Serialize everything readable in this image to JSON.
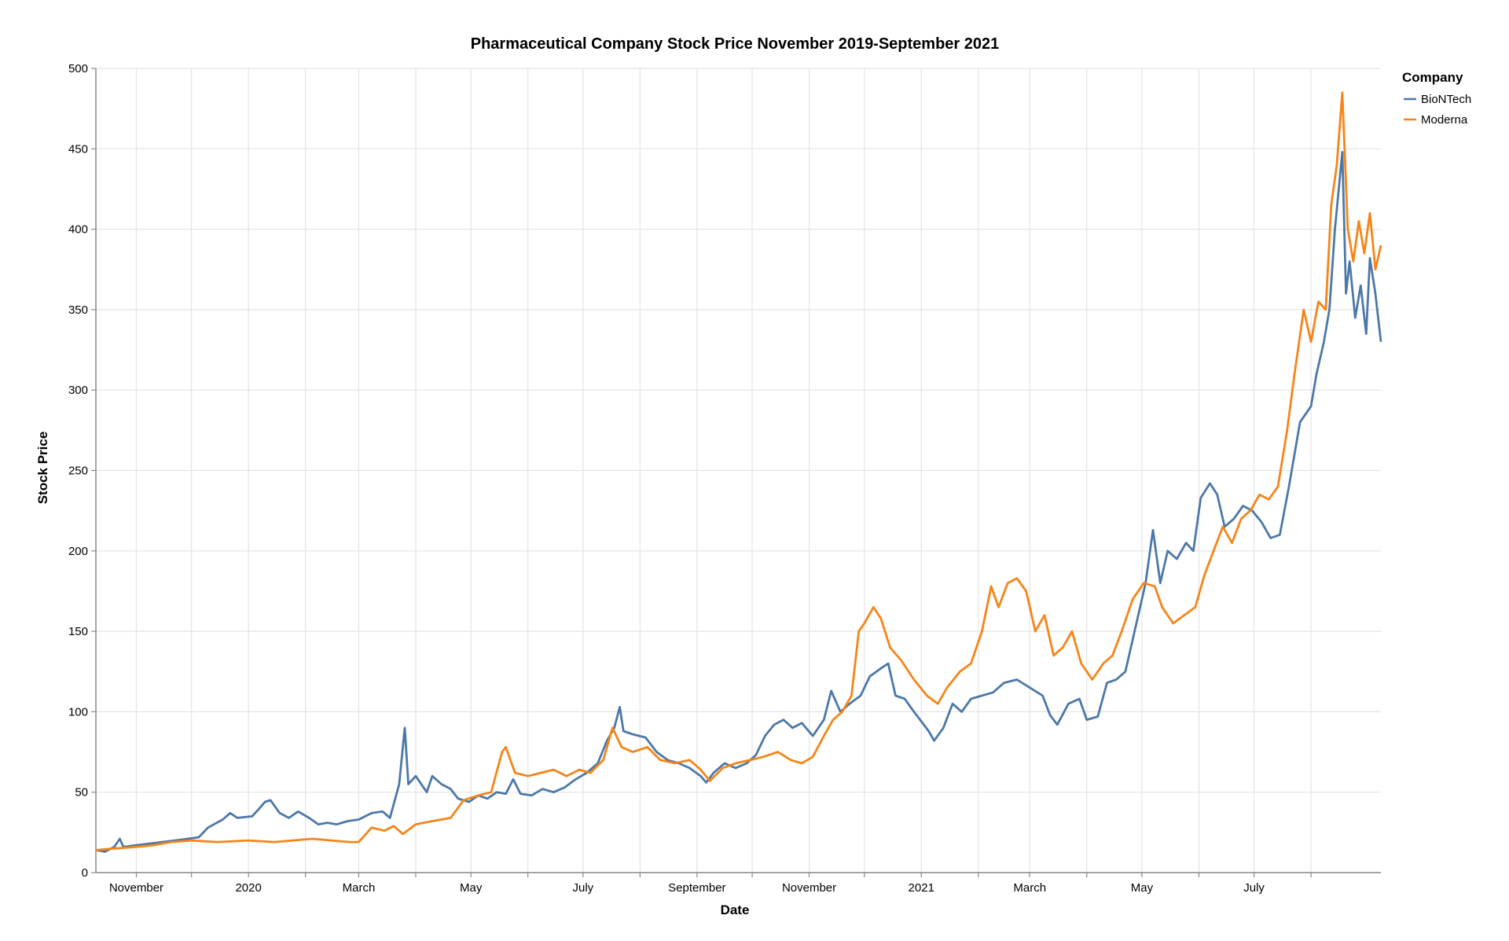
{
  "chart_data": {
    "type": "line",
    "title": "Pharmaceutical Company Stock Price November 2019-September 2021",
    "xlabel": "Date",
    "ylabel": "Stock Price",
    "legend_title": "Company",
    "legend_position": "top-right",
    "grid": true,
    "xlim": [
      "2019-10-10",
      "2021-09-08"
    ],
    "ylim": [
      0,
      500
    ],
    "y_ticks": [
      0,
      50,
      100,
      150,
      200,
      250,
      300,
      350,
      400,
      450,
      500
    ],
    "x_ticks": [
      {
        "date": "2019-11-01",
        "label": "November"
      },
      {
        "date": "2019-12-01",
        "label": ""
      },
      {
        "date": "2020-01-01",
        "label": "2020"
      },
      {
        "date": "2020-02-01",
        "label": ""
      },
      {
        "date": "2020-03-01",
        "label": "March"
      },
      {
        "date": "2020-04-01",
        "label": ""
      },
      {
        "date": "2020-05-01",
        "label": "May"
      },
      {
        "date": "2020-06-01",
        "label": ""
      },
      {
        "date": "2020-07-01",
        "label": "July"
      },
      {
        "date": "2020-08-01",
        "label": ""
      },
      {
        "date": "2020-09-01",
        "label": "September"
      },
      {
        "date": "2020-10-01",
        "label": ""
      },
      {
        "date": "2020-11-01",
        "label": "November"
      },
      {
        "date": "2020-12-01",
        "label": ""
      },
      {
        "date": "2021-01-01",
        "label": "2021"
      },
      {
        "date": "2021-02-01",
        "label": ""
      },
      {
        "date": "2021-03-01",
        "label": "March"
      },
      {
        "date": "2021-04-01",
        "label": ""
      },
      {
        "date": "2021-05-01",
        "label": "May"
      },
      {
        "date": "2021-06-01",
        "label": ""
      },
      {
        "date": "2021-07-01",
        "label": "July"
      },
      {
        "date": "2021-08-01",
        "label": ""
      }
    ],
    "series": [
      {
        "name": "BioNTech",
        "color": "#4c78a8",
        "points": [
          [
            "2019-10-10",
            14
          ],
          [
            "2019-10-15",
            13
          ],
          [
            "2019-10-20",
            16
          ],
          [
            "2019-10-23",
            21
          ],
          [
            "2019-10-25",
            16
          ],
          [
            "2019-11-01",
            17
          ],
          [
            "2019-11-08",
            18
          ],
          [
            "2019-11-15",
            19
          ],
          [
            "2019-11-22",
            20
          ],
          [
            "2019-11-29",
            21
          ],
          [
            "2019-12-05",
            22
          ],
          [
            "2019-12-10",
            28
          ],
          [
            "2019-12-18",
            33
          ],
          [
            "2019-12-22",
            37
          ],
          [
            "2019-12-26",
            34
          ],
          [
            "2020-01-03",
            35
          ],
          [
            "2020-01-07",
            40
          ],
          [
            "2020-01-10",
            44
          ],
          [
            "2020-01-13",
            45
          ],
          [
            "2020-01-18",
            37
          ],
          [
            "2020-01-23",
            34
          ],
          [
            "2020-01-28",
            38
          ],
          [
            "2020-02-03",
            34
          ],
          [
            "2020-02-08",
            30
          ],
          [
            "2020-02-13",
            31
          ],
          [
            "2020-02-18",
            30
          ],
          [
            "2020-02-24",
            32
          ],
          [
            "2020-03-01",
            33
          ],
          [
            "2020-03-08",
            37
          ],
          [
            "2020-03-14",
            38
          ],
          [
            "2020-03-18",
            34
          ],
          [
            "2020-03-23",
            55
          ],
          [
            "2020-03-26",
            90
          ],
          [
            "2020-03-28",
            55
          ],
          [
            "2020-04-01",
            60
          ],
          [
            "2020-04-07",
            50
          ],
          [
            "2020-04-10",
            60
          ],
          [
            "2020-04-15",
            55
          ],
          [
            "2020-04-20",
            52
          ],
          [
            "2020-04-24",
            46
          ],
          [
            "2020-04-30",
            44
          ],
          [
            "2020-05-05",
            48
          ],
          [
            "2020-05-10",
            46
          ],
          [
            "2020-05-15",
            50
          ],
          [
            "2020-05-20",
            49
          ],
          [
            "2020-05-24",
            58
          ],
          [
            "2020-05-28",
            49
          ],
          [
            "2020-06-03",
            48
          ],
          [
            "2020-06-09",
            52
          ],
          [
            "2020-06-15",
            50
          ],
          [
            "2020-06-21",
            53
          ],
          [
            "2020-06-27",
            58
          ],
          [
            "2020-07-03",
            62
          ],
          [
            "2020-07-09",
            68
          ],
          [
            "2020-07-14",
            82
          ],
          [
            "2020-07-18",
            90
          ],
          [
            "2020-07-21",
            103
          ],
          [
            "2020-07-23",
            88
          ],
          [
            "2020-07-28",
            86
          ],
          [
            "2020-08-04",
            84
          ],
          [
            "2020-08-10",
            75
          ],
          [
            "2020-08-16",
            70
          ],
          [
            "2020-08-22",
            68
          ],
          [
            "2020-08-28",
            65
          ],
          [
            "2020-09-03",
            60
          ],
          [
            "2020-09-06",
            56
          ],
          [
            "2020-09-10",
            62
          ],
          [
            "2020-09-16",
            68
          ],
          [
            "2020-09-22",
            65
          ],
          [
            "2020-09-28",
            68
          ],
          [
            "2020-10-03",
            73
          ],
          [
            "2020-10-08",
            85
          ],
          [
            "2020-10-13",
            92
          ],
          [
            "2020-10-18",
            95
          ],
          [
            "2020-10-23",
            90
          ],
          [
            "2020-10-28",
            93
          ],
          [
            "2020-11-03",
            85
          ],
          [
            "2020-11-09",
            95
          ],
          [
            "2020-11-13",
            113
          ],
          [
            "2020-11-18",
            100
          ],
          [
            "2020-11-23",
            105
          ],
          [
            "2020-11-29",
            110
          ],
          [
            "2020-12-04",
            122
          ],
          [
            "2020-12-10",
            127
          ],
          [
            "2020-12-14",
            130
          ],
          [
            "2020-12-18",
            110
          ],
          [
            "2020-12-23",
            108
          ],
          [
            "2020-12-28",
            100
          ],
          [
            "2021-01-05",
            88
          ],
          [
            "2021-01-08",
            82
          ],
          [
            "2021-01-13",
            90
          ],
          [
            "2021-01-18",
            105
          ],
          [
            "2021-01-23",
            100
          ],
          [
            "2021-01-28",
            108
          ],
          [
            "2021-02-03",
            110
          ],
          [
            "2021-02-09",
            112
          ],
          [
            "2021-02-15",
            118
          ],
          [
            "2021-02-22",
            120
          ],
          [
            "2021-03-01",
            115
          ],
          [
            "2021-03-08",
            110
          ],
          [
            "2021-03-12",
            98
          ],
          [
            "2021-03-16",
            92
          ],
          [
            "2021-03-22",
            105
          ],
          [
            "2021-03-28",
            108
          ],
          [
            "2021-04-01",
            95
          ],
          [
            "2021-04-07",
            97
          ],
          [
            "2021-04-12",
            118
          ],
          [
            "2021-04-17",
            120
          ],
          [
            "2021-04-22",
            125
          ],
          [
            "2021-04-27",
            150
          ],
          [
            "2021-05-03",
            180
          ],
          [
            "2021-05-07",
            213
          ],
          [
            "2021-05-11",
            180
          ],
          [
            "2021-05-15",
            200
          ],
          [
            "2021-05-20",
            195
          ],
          [
            "2021-05-25",
            205
          ],
          [
            "2021-05-29",
            200
          ],
          [
            "2021-06-02",
            233
          ],
          [
            "2021-06-07",
            242
          ],
          [
            "2021-06-11",
            235
          ],
          [
            "2021-06-15",
            215
          ],
          [
            "2021-06-20",
            220
          ],
          [
            "2021-06-25",
            228
          ],
          [
            "2021-06-30",
            225
          ],
          [
            "2021-07-05",
            218
          ],
          [
            "2021-07-10",
            208
          ],
          [
            "2021-07-15",
            210
          ],
          [
            "2021-07-20",
            240
          ],
          [
            "2021-07-26",
            280
          ],
          [
            "2021-08-01",
            290
          ],
          [
            "2021-08-04",
            310
          ],
          [
            "2021-08-08",
            330
          ],
          [
            "2021-08-11",
            350
          ],
          [
            "2021-08-14",
            400
          ],
          [
            "2021-08-18",
            448
          ],
          [
            "2021-08-20",
            360
          ],
          [
            "2021-08-22",
            380
          ],
          [
            "2021-08-25",
            345
          ],
          [
            "2021-08-28",
            365
          ],
          [
            "2021-08-31",
            335
          ],
          [
            "2021-09-02",
            382
          ],
          [
            "2021-09-05",
            360
          ],
          [
            "2021-09-08",
            330
          ]
        ]
      },
      {
        "name": "Moderna",
        "color": "#f58518",
        "points": [
          [
            "2019-10-10",
            14
          ],
          [
            "2019-10-20",
            15
          ],
          [
            "2019-11-01",
            16
          ],
          [
            "2019-11-10",
            17
          ],
          [
            "2019-11-20",
            19
          ],
          [
            "2019-12-01",
            20
          ],
          [
            "2019-12-15",
            19
          ],
          [
            "2020-01-01",
            20
          ],
          [
            "2020-01-15",
            19
          ],
          [
            "2020-01-25",
            20
          ],
          [
            "2020-02-05",
            21
          ],
          [
            "2020-02-15",
            20
          ],
          [
            "2020-02-25",
            19
          ],
          [
            "2020-03-01",
            19
          ],
          [
            "2020-03-08",
            28
          ],
          [
            "2020-03-15",
            26
          ],
          [
            "2020-03-20",
            29
          ],
          [
            "2020-03-25",
            24
          ],
          [
            "2020-04-01",
            30
          ],
          [
            "2020-04-10",
            32
          ],
          [
            "2020-04-20",
            34
          ],
          [
            "2020-04-27",
            45
          ],
          [
            "2020-05-05",
            48
          ],
          [
            "2020-05-12",
            50
          ],
          [
            "2020-05-18",
            75
          ],
          [
            "2020-05-20",
            78
          ],
          [
            "2020-05-25",
            62
          ],
          [
            "2020-06-01",
            60
          ],
          [
            "2020-06-08",
            62
          ],
          [
            "2020-06-15",
            64
          ],
          [
            "2020-06-22",
            60
          ],
          [
            "2020-06-29",
            64
          ],
          [
            "2020-07-05",
            62
          ],
          [
            "2020-07-12",
            70
          ],
          [
            "2020-07-17",
            90
          ],
          [
            "2020-07-22",
            78
          ],
          [
            "2020-07-28",
            75
          ],
          [
            "2020-08-05",
            78
          ],
          [
            "2020-08-12",
            70
          ],
          [
            "2020-08-20",
            68
          ],
          [
            "2020-08-28",
            70
          ],
          [
            "2020-09-03",
            64
          ],
          [
            "2020-09-08",
            57
          ],
          [
            "2020-09-15",
            65
          ],
          [
            "2020-09-22",
            68
          ],
          [
            "2020-09-30",
            70
          ],
          [
            "2020-10-07",
            72
          ],
          [
            "2020-10-15",
            75
          ],
          [
            "2020-10-22",
            70
          ],
          [
            "2020-10-28",
            68
          ],
          [
            "2020-11-03",
            72
          ],
          [
            "2020-11-09",
            85
          ],
          [
            "2020-11-14",
            95
          ],
          [
            "2020-11-19",
            100
          ],
          [
            "2020-11-24",
            110
          ],
          [
            "2020-11-28",
            150
          ],
          [
            "2020-12-01",
            155
          ],
          [
            "2020-12-06",
            165
          ],
          [
            "2020-12-10",
            158
          ],
          [
            "2020-12-15",
            140
          ],
          [
            "2020-12-21",
            132
          ],
          [
            "2020-12-28",
            120
          ],
          [
            "2021-01-04",
            110
          ],
          [
            "2021-01-10",
            105
          ],
          [
            "2021-01-15",
            115
          ],
          [
            "2021-01-22",
            125
          ],
          [
            "2021-01-28",
            130
          ],
          [
            "2021-02-03",
            150
          ],
          [
            "2021-02-08",
            178
          ],
          [
            "2021-02-12",
            165
          ],
          [
            "2021-02-17",
            180
          ],
          [
            "2021-02-22",
            183
          ],
          [
            "2021-02-27",
            175
          ],
          [
            "2021-03-04",
            150
          ],
          [
            "2021-03-09",
            160
          ],
          [
            "2021-03-14",
            135
          ],
          [
            "2021-03-19",
            140
          ],
          [
            "2021-03-24",
            150
          ],
          [
            "2021-03-29",
            130
          ],
          [
            "2021-04-04",
            120
          ],
          [
            "2021-04-10",
            130
          ],
          [
            "2021-04-15",
            135
          ],
          [
            "2021-04-20",
            150
          ],
          [
            "2021-04-26",
            170
          ],
          [
            "2021-05-02",
            180
          ],
          [
            "2021-05-08",
            178
          ],
          [
            "2021-05-12",
            165
          ],
          [
            "2021-05-18",
            155
          ],
          [
            "2021-05-24",
            160
          ],
          [
            "2021-05-30",
            165
          ],
          [
            "2021-06-04",
            185
          ],
          [
            "2021-06-09",
            200
          ],
          [
            "2021-06-14",
            215
          ],
          [
            "2021-06-19",
            205
          ],
          [
            "2021-06-24",
            220
          ],
          [
            "2021-06-29",
            225
          ],
          [
            "2021-07-04",
            235
          ],
          [
            "2021-07-09",
            232
          ],
          [
            "2021-07-14",
            240
          ],
          [
            "2021-07-19",
            275
          ],
          [
            "2021-07-23",
            310
          ],
          [
            "2021-07-28",
            350
          ],
          [
            "2021-08-01",
            330
          ],
          [
            "2021-08-05",
            355
          ],
          [
            "2021-08-09",
            350
          ],
          [
            "2021-08-12",
            415
          ],
          [
            "2021-08-15",
            440
          ],
          [
            "2021-08-18",
            485
          ],
          [
            "2021-08-21",
            400
          ],
          [
            "2021-08-24",
            380
          ],
          [
            "2021-08-27",
            405
          ],
          [
            "2021-08-30",
            385
          ],
          [
            "2021-09-02",
            410
          ],
          [
            "2021-09-05",
            375
          ],
          [
            "2021-09-08",
            390
          ]
        ]
      }
    ]
  }
}
